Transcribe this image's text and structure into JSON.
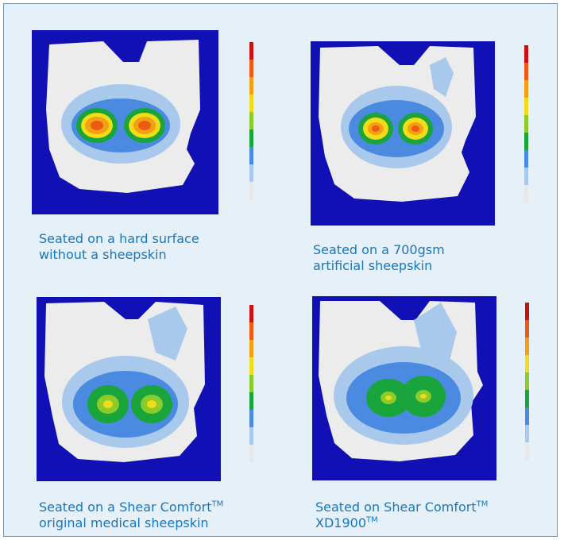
{
  "panels": [
    {
      "caption_line1": "Seated on a hard surface",
      "caption_line2": "without a sheepskin",
      "hotspot_level": "high"
    },
    {
      "caption_line1": "Seated on a 700gsm",
      "caption_line2": "artificial sheepskin",
      "hotspot_level": "high"
    },
    {
      "caption_line1a": "Seated on a Shear Comfort",
      "caption_line1_tm": "TM",
      "caption_line2": "original medical sheepskin",
      "hotspot_level": "medium"
    },
    {
      "caption_line1a": "Seated on Shear Comfort",
      "caption_line1_tm": "TM",
      "caption_line2a": "XD1900",
      "caption_line2_tm": "TM",
      "hotspot_level": "medium"
    }
  ],
  "colors": {
    "panel_bg": "#e6f0f9",
    "border": "#7a93a8",
    "caption": "#1677bf",
    "map_bg": "#1010b4",
    "scale": [
      "#e8e8e8",
      "#a8c8ec",
      "#4a8ae0",
      "#1aa43c",
      "#8ccc2a",
      "#f0dc18",
      "#f4a014",
      "#ec5a14",
      "#cc1010"
    ]
  }
}
